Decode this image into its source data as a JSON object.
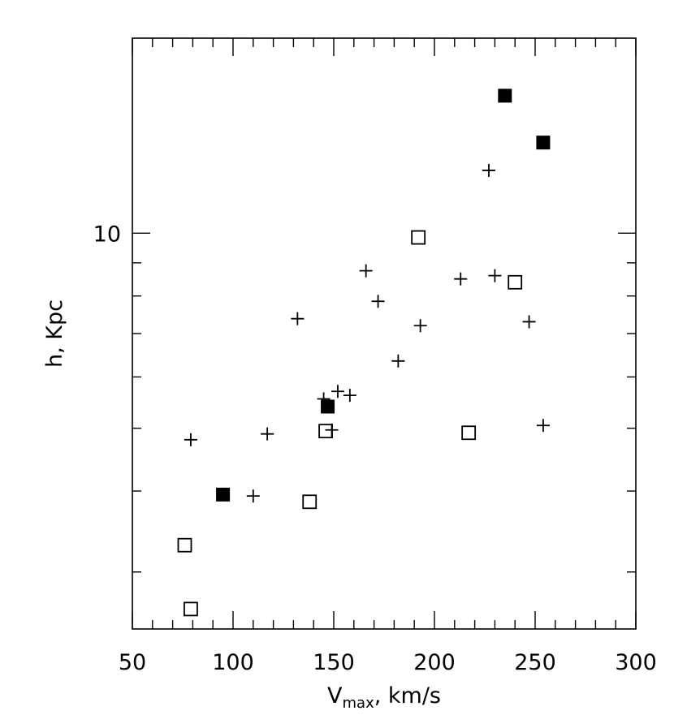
{
  "chart_data": {
    "type": "scatter",
    "title": "",
    "xlabel": {
      "main": "V",
      "subscript": "max",
      "rest": ",  km/s"
    },
    "ylabel": "h,  Kpc",
    "xlim": [
      50,
      300
    ],
    "ylim": [
      2.45,
      20.0
    ],
    "yscale": "log",
    "grid": false,
    "legend": "none",
    "x_ticks": [
      50,
      100,
      150,
      200,
      250,
      300
    ],
    "x_tick_labels": [
      "50",
      "100",
      "150",
      "200",
      "250",
      "300"
    ],
    "y_major_ticks": [
      10
    ],
    "y_tick_labels": [
      "10"
    ],
    "y_minor_ticks": [
      3,
      4,
      5,
      6,
      7,
      8,
      9
    ],
    "series": [
      {
        "marker": "filled-square",
        "color": "#000000",
        "points": [
          {
            "x": 95,
            "y": 3.95
          },
          {
            "x": 147,
            "y": 5.4
          },
          {
            "x": 235,
            "y": 16.3
          },
          {
            "x": 254,
            "y": 13.8
          }
        ]
      },
      {
        "marker": "open-square",
        "color": "#000000",
        "points": [
          {
            "x": 79,
            "y": 2.63
          },
          {
            "x": 76,
            "y": 3.3
          },
          {
            "x": 138,
            "y": 3.85
          },
          {
            "x": 146,
            "y": 4.95
          },
          {
            "x": 192,
            "y": 9.85
          },
          {
            "x": 217,
            "y": 4.92
          },
          {
            "x": 240,
            "y": 8.4
          }
        ]
      },
      {
        "marker": "plus",
        "color": "#000000",
        "points": [
          {
            "x": 79,
            "y": 4.8
          },
          {
            "x": 110,
            "y": 3.93
          },
          {
            "x": 117,
            "y": 4.9
          },
          {
            "x": 132,
            "y": 7.38
          },
          {
            "x": 145,
            "y": 5.55
          },
          {
            "x": 149,
            "y": 4.97
          },
          {
            "x": 152,
            "y": 5.7
          },
          {
            "x": 158,
            "y": 5.62
          },
          {
            "x": 166,
            "y": 8.75
          },
          {
            "x": 172,
            "y": 7.85
          },
          {
            "x": 182,
            "y": 6.35
          },
          {
            "x": 193,
            "y": 7.2
          },
          {
            "x": 213,
            "y": 8.5
          },
          {
            "x": 227,
            "y": 12.5
          },
          {
            "x": 230,
            "y": 8.6
          },
          {
            "x": 247,
            "y": 7.3
          },
          {
            "x": 254,
            "y": 5.05
          }
        ]
      }
    ]
  }
}
